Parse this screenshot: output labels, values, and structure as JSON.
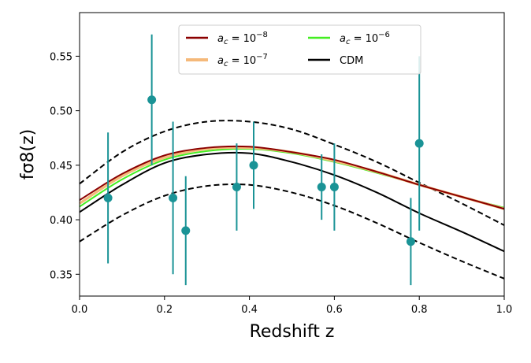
{
  "chart_data": {
    "type": "line",
    "xlabel": "Redshift z",
    "ylabel": "fσ8(z)",
    "xlim": [
      0.0,
      1.0
    ],
    "ylim": [
      0.33,
      0.59
    ],
    "xticks": [
      "0.0",
      "0.2",
      "0.4",
      "0.6",
      "0.8",
      "1.0"
    ],
    "yticks": [
      "0.35",
      "0.40",
      "0.45",
      "0.50",
      "0.55"
    ],
    "grid": false,
    "legend": {
      "position": "top-center",
      "columns": 2,
      "entries": [
        {
          "label": "a_c = 10^-8",
          "series": "ac_1e-8"
        },
        {
          "label": "a_c = 10^-7",
          "series": "ac_1e-7"
        },
        {
          "label": "a_c = 10^-6",
          "series": "ac_1e-6"
        },
        {
          "label": "CDM",
          "series": "cdm"
        }
      ]
    },
    "series": [
      {
        "id": "ac_1e-8",
        "name": "a_c = 10^-8",
        "color": "#8b0000",
        "x": [
          0.0,
          0.1,
          0.2,
          0.3,
          0.4,
          0.5,
          0.6,
          0.7,
          0.8,
          0.9,
          1.0
        ],
        "y": [
          0.418,
          0.442,
          0.459,
          0.466,
          0.467,
          0.462,
          0.455,
          0.444,
          0.432,
          0.421,
          0.41
        ]
      },
      {
        "id": "ac_1e-7",
        "name": "a_c = 10^-7",
        "color": "#f5b97a",
        "x": [
          0.0,
          0.1,
          0.2,
          0.3,
          0.4,
          0.5,
          0.6,
          0.7,
          0.8,
          0.9,
          1.0
        ],
        "y": [
          0.415,
          0.44,
          0.457,
          0.465,
          0.466,
          0.462,
          0.454,
          0.444,
          0.432,
          0.421,
          0.41
        ]
      },
      {
        "id": "ac_1e-6",
        "name": "a_c = 10^-6",
        "color": "#44ee22",
        "x": [
          0.0,
          0.1,
          0.2,
          0.3,
          0.4,
          0.5,
          0.6,
          0.7,
          0.8,
          0.9,
          1.0
        ],
        "y": [
          0.412,
          0.437,
          0.455,
          0.463,
          0.465,
          0.461,
          0.453,
          0.443,
          0.432,
          0.421,
          0.411
        ]
      },
      {
        "id": "cdm",
        "name": "CDM",
        "color": "#000000",
        "x": [
          0.0,
          0.1,
          0.2,
          0.3,
          0.4,
          0.5,
          0.6,
          0.7,
          0.8,
          0.9,
          1.0
        ],
        "y": [
          0.407,
          0.432,
          0.452,
          0.46,
          0.461,
          0.453,
          0.441,
          0.425,
          0.406,
          0.389,
          0.371
        ]
      },
      {
        "id": "cdm_upper",
        "style": "dashed",
        "color": "#000000",
        "x": [
          0.0,
          0.1,
          0.2,
          0.3,
          0.4,
          0.5,
          0.6,
          0.7,
          0.8,
          0.9,
          1.0
        ],
        "y": [
          0.433,
          0.462,
          0.481,
          0.49,
          0.49,
          0.483,
          0.469,
          0.453,
          0.434,
          0.415,
          0.395
        ]
      },
      {
        "id": "cdm_lower",
        "style": "dashed",
        "color": "#000000",
        "x": [
          0.0,
          0.1,
          0.2,
          0.3,
          0.4,
          0.5,
          0.6,
          0.7,
          0.8,
          0.9,
          1.0
        ],
        "y": [
          0.38,
          0.404,
          0.422,
          0.431,
          0.432,
          0.425,
          0.413,
          0.397,
          0.379,
          0.362,
          0.346
        ]
      }
    ],
    "data_points": {
      "color": "#1a9396",
      "points": [
        {
          "z": 0.067,
          "value": 0.42,
          "err_low": 0.36,
          "err_high": 0.48
        },
        {
          "z": 0.17,
          "value": 0.51,
          "err_low": 0.45,
          "err_high": 0.57
        },
        {
          "z": 0.22,
          "value": 0.42,
          "err_low": 0.35,
          "err_high": 0.49
        },
        {
          "z": 0.25,
          "value": 0.39,
          "err_low": 0.34,
          "err_high": 0.44
        },
        {
          "z": 0.37,
          "value": 0.43,
          "err_low": 0.39,
          "err_high": 0.47
        },
        {
          "z": 0.41,
          "value": 0.45,
          "err_low": 0.41,
          "err_high": 0.49
        },
        {
          "z": 0.57,
          "value": 0.43,
          "err_low": 0.4,
          "err_high": 0.46
        },
        {
          "z": 0.6,
          "value": 0.43,
          "err_low": 0.39,
          "err_high": 0.47
        },
        {
          "z": 0.78,
          "value": 0.38,
          "err_low": 0.34,
          "err_high": 0.42
        },
        {
          "z": 0.8,
          "value": 0.47,
          "err_low": 0.39,
          "err_high": 0.55
        }
      ]
    }
  }
}
